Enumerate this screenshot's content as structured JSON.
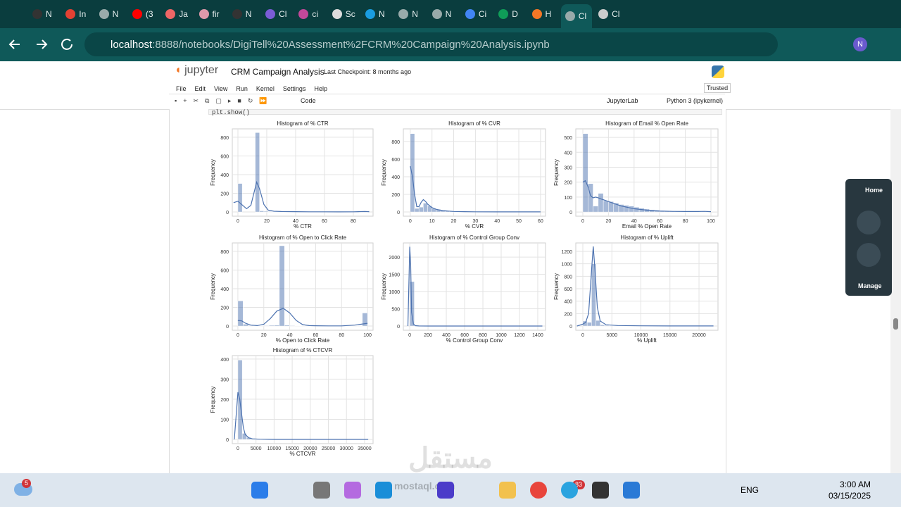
{
  "browser": {
    "tabs": [
      "N",
      "In",
      "N",
      "(3",
      "Ja",
      "fir",
      "N",
      "Cl",
      "ci",
      "Sc",
      "N",
      "N",
      "N",
      "Ci",
      "D",
      "H",
      "Cl",
      "Cl"
    ],
    "url_host": "localhost",
    "url_path": ":8888/notebooks/DigiTell%20Assessment%2FCRM%20Campaign%20Analysis.ipynb",
    "profile": "N"
  },
  "jupyter": {
    "logo": "jupyter",
    "title": "CRM Campaign Analysis",
    "checkpoint": "Last Checkpoint: 8 months ago",
    "menu": [
      "File",
      "Edit",
      "View",
      "Run",
      "Kernel",
      "Settings",
      "Help"
    ],
    "trusted": "Trusted",
    "cell_type": "Code",
    "lab_link": "JupyterLab",
    "kernel": "Python 3 (ipykernel)",
    "code": "plt.show()"
  },
  "side_panel": {
    "home": "Home",
    "manage": "Manage"
  },
  "taskbar": {
    "weather_badge": "5",
    "telegram_badge": "83",
    "language": "ENG",
    "time": "3:00 AM",
    "date": "03/15/2025"
  },
  "watermark": {
    "arabic": "مستقل",
    "latin": "mostaql.com"
  },
  "chart_data": [
    {
      "type": "histogram",
      "title": "Histogram of % CTR",
      "x_label": "% CTR",
      "y_label": "Frequency",
      "color": "#4c72b0",
      "grid": true,
      "bins": [
        0,
        3,
        6,
        9,
        12,
        15,
        18,
        21,
        24,
        27,
        30,
        33,
        36,
        39,
        42,
        45,
        48,
        51,
        54,
        57,
        60,
        63,
        66,
        69,
        72,
        75,
        78,
        81,
        84,
        87,
        90
      ],
      "counts": [
        305,
        0,
        0,
        0,
        850,
        12,
        8,
        5,
        4,
        3,
        3,
        2,
        2,
        1,
        1,
        1,
        1,
        1,
        1,
        0,
        0,
        0,
        0,
        0,
        0,
        0,
        0,
        0,
        1,
        2
      ],
      "kde": {
        "x": [
          -3,
          0,
          3,
          6,
          9,
          12,
          13,
          15,
          18,
          21,
          25,
          30,
          40,
          50,
          60,
          70,
          80,
          88,
          91
        ],
        "y": [
          100,
          115,
          75,
          35,
          70,
          260,
          320,
          250,
          80,
          20,
          8,
          5,
          3,
          2,
          2,
          1,
          2,
          5,
          3
        ]
      },
      "xlim": [
        -3.9,
        93.7
      ],
      "ylim": [
        -45,
        890
      ],
      "xticks": [
        0,
        20,
        40,
        60,
        80
      ],
      "yticks": [
        0,
        200,
        400,
        600,
        800
      ]
    },
    {
      "type": "histogram",
      "title": "Histogram of % CVR",
      "x_label": "% CVR",
      "y_label": "Frequency",
      "color": "#4c72b0",
      "grid": true,
      "bins": [
        0,
        2,
        4,
        6,
        8,
        10,
        12,
        14,
        16,
        18,
        20,
        22,
        24,
        26,
        28,
        30,
        32,
        34,
        36,
        38,
        40,
        42,
        44,
        46,
        48,
        50,
        52,
        54,
        56,
        58,
        60
      ],
      "counts": [
        890,
        40,
        55,
        100,
        70,
        40,
        30,
        20,
        12,
        8,
        6,
        5,
        4,
        3,
        2,
        2,
        1,
        1,
        1,
        1,
        0,
        0,
        0,
        0,
        0,
        0,
        0,
        0,
        0,
        1
      ],
      "kde": {
        "x": [
          0,
          1,
          2,
          3,
          4,
          5,
          6,
          7,
          8,
          10,
          12,
          15,
          20,
          25,
          30,
          40,
          50,
          60
        ],
        "y": [
          520,
          400,
          200,
          60,
          60,
          110,
          140,
          120,
          90,
          50,
          30,
          15,
          6,
          3,
          2,
          1,
          1,
          1
        ]
      },
      "xlim": [
        -3.2,
        62.3
      ],
      "ylim": [
        -48,
        944
      ],
      "xticks": [
        0,
        10,
        20,
        30,
        40,
        50,
        60
      ],
      "yticks": [
        0,
        200,
        400,
        600,
        800
      ]
    },
    {
      "type": "histogram",
      "title": "Histogram of Email % Open Rate",
      "x_label": "Email % Open Rate",
      "y_label": "Frequency",
      "color": "#4c72b0",
      "grid": true,
      "bins": [
        0,
        4,
        8,
        12,
        16,
        20,
        24,
        28,
        32,
        36,
        40,
        44,
        48,
        52,
        56,
        60,
        64,
        68,
        72,
        76,
        80,
        84,
        88,
        92,
        96,
        100
      ],
      "counts": [
        525,
        190,
        40,
        125,
        75,
        70,
        60,
        50,
        45,
        40,
        32,
        25,
        20,
        15,
        12,
        9,
        7,
        5,
        4,
        3,
        2,
        2,
        1,
        1,
        6
      ],
      "kde": {
        "x": [
          0,
          2,
          4,
          6,
          8,
          10,
          12,
          15,
          20,
          25,
          30,
          40,
          50,
          60,
          70,
          80,
          90,
          95,
          100
        ],
        "y": [
          200,
          210,
          170,
          110,
          95,
          100,
          95,
          85,
          70,
          55,
          40,
          22,
          12,
          7,
          4,
          3,
          3,
          4,
          2
        ]
      },
      "xlim": [
        -5.5,
        105.5
      ],
      "ylim": [
        -28,
        557
      ],
      "xticks": [
        0,
        20,
        40,
        60,
        80,
        100
      ],
      "yticks": [
        0,
        100,
        200,
        300,
        400,
        500
      ]
    },
    {
      "type": "histogram",
      "title": "Histogram of % Open to Click Rate",
      "x_label": "% Open to Click Rate",
      "y_label": "Frequency",
      "color": "#4c72b0",
      "grid": true,
      "bins": [
        0,
        4,
        8,
        12,
        16,
        20,
        24,
        28,
        32,
        36,
        40,
        44,
        48,
        52,
        56,
        60,
        64,
        68,
        72,
        76,
        80,
        84,
        88,
        92,
        96,
        100
      ],
      "counts": [
        270,
        20,
        5,
        2,
        3,
        5,
        8,
        10,
        860,
        10,
        5,
        3,
        2,
        1,
        1,
        1,
        1,
        1,
        1,
        1,
        1,
        1,
        1,
        2,
        140
      ],
      "kde": {
        "x": [
          0,
          3,
          6,
          10,
          15,
          20,
          25,
          30,
          35,
          40,
          45,
          50,
          55,
          60,
          70,
          80,
          90,
          100
        ],
        "y": [
          60,
          55,
          30,
          10,
          5,
          20,
          80,
          160,
          190,
          140,
          60,
          15,
          5,
          3,
          2,
          2,
          10,
          30
        ]
      },
      "xlim": [
        -4.3,
        104.3
      ],
      "ylim": [
        -45,
        890
      ],
      "xticks": [
        0,
        20,
        40,
        60,
        80,
        100
      ],
      "yticks": [
        0,
        200,
        400,
        600,
        800
      ]
    },
    {
      "type": "histogram",
      "title": "Histogram of % Control Group Conv",
      "x_label": "% Control Group Conv",
      "y_label": "Frequency",
      "color": "#4c72b0",
      "grid": true,
      "bins": [
        0,
        50,
        100,
        150,
        200,
        250,
        300,
        350,
        400,
        450,
        500,
        550,
        600,
        650,
        700,
        750,
        800,
        850,
        900,
        950,
        1000,
        1050,
        1100,
        1150,
        1200,
        1250,
        1300,
        1350,
        1400,
        1450,
        1500
      ],
      "counts": [
        1290,
        8,
        2,
        0,
        0,
        0,
        0,
        0,
        0,
        0,
        0,
        0,
        0,
        0,
        0,
        0,
        0,
        0,
        0,
        0,
        0,
        0,
        0,
        0,
        0,
        0,
        0,
        0,
        0,
        0
      ],
      "kde": {
        "x": [
          -20,
          0,
          10,
          20,
          40,
          60,
          100,
          200,
          400,
          1450
        ],
        "y": [
          0,
          2300,
          1800,
          400,
          60,
          10,
          2,
          1,
          0,
          0
        ]
      },
      "xlim": [
        -70,
        1485
      ],
      "ylim": [
        -122,
        2410
      ],
      "xticks": [
        0,
        200,
        400,
        600,
        800,
        1000,
        1200,
        1400
      ],
      "yticks": [
        0,
        500,
        1000,
        1500,
        2000
      ]
    },
    {
      "type": "histogram",
      "title": "Histogram of % Uplift",
      "x_label": "% Uplift",
      "y_label": "Frequency",
      "color": "#4c72b0",
      "grid": true,
      "bins": [
        0,
        750,
        1500,
        2250,
        3000,
        3750,
        4500,
        5250,
        6000,
        6750,
        7500,
        8250,
        9000,
        9750,
        10500,
        11250,
        12000,
        12750,
        13500,
        14250,
        15000,
        15750,
        16500,
        17250,
        18000,
        18750,
        19500,
        20250,
        21000,
        21750,
        22500
      ],
      "counts": [
        80,
        60,
        1000,
        90,
        20,
        10,
        6,
        4,
        3,
        2,
        2,
        1,
        1,
        1,
        1,
        1,
        1,
        1,
        0,
        0,
        0,
        0,
        0,
        0,
        0,
        0,
        0,
        0,
        0,
        1
      ],
      "kde": {
        "x": [
          -1000,
          0,
          500,
          1000,
          1500,
          1800,
          2100,
          2500,
          3000,
          4000,
          6000,
          10000,
          15000,
          20000,
          22500
        ],
        "y": [
          0,
          30,
          60,
          200,
          900,
          1280,
          900,
          300,
          80,
          20,
          8,
          3,
          1,
          1,
          1
        ]
      },
      "xlim": [
        -1210,
        23270
      ],
      "ylim": [
        -68,
        1336
      ],
      "xticks": [
        0,
        5000,
        10000,
        15000,
        20000
      ],
      "yticks": [
        0,
        200,
        400,
        600,
        800,
        1000,
        1200
      ]
    },
    {
      "type": "histogram",
      "title": "Histogram of % CTCVR",
      "x_label": "% CTCVR",
      "y_label": "Frequency",
      "color": "#4c72b0",
      "grid": true,
      "bins": [
        0,
        1200,
        2400,
        3600,
        4800,
        6000,
        7200,
        8400,
        9600,
        10800,
        12000,
        13200,
        14400,
        15600,
        16800,
        18000,
        19200,
        20400,
        21600,
        22800,
        24000,
        25200,
        26400,
        27600,
        28800,
        30000,
        31200,
        32400,
        33600,
        34800,
        36000
      ],
      "counts": [
        395,
        30,
        10,
        4,
        2,
        1,
        1,
        1,
        0,
        0,
        0,
        0,
        0,
        0,
        0,
        0,
        0,
        0,
        0,
        0,
        0,
        0,
        0,
        0,
        0,
        0,
        0,
        0,
        0,
        0
      ],
      "kde": {
        "x": [
          -1000,
          0,
          500,
          1000,
          1500,
          2000,
          3000,
          4000,
          6000,
          10000,
          20000,
          36000
        ],
        "y": [
          0,
          235,
          200,
          130,
          60,
          25,
          8,
          3,
          1,
          0,
          0,
          0
        ]
      },
      "xlim": [
        -1555,
        37350
      ],
      "ylim": [
        -21,
        417
      ],
      "xticks": [
        0,
        5000,
        10000,
        15000,
        20000,
        25000,
        30000,
        35000
      ],
      "yticks": [
        0,
        100,
        200,
        300,
        400
      ]
    }
  ]
}
